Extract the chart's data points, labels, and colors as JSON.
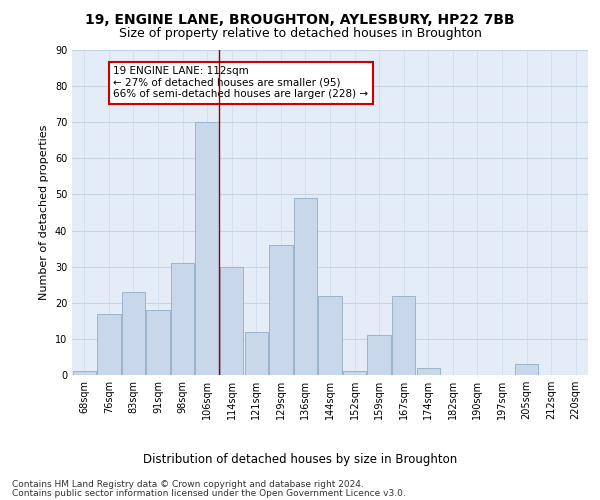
{
  "title1": "19, ENGINE LANE, BROUGHTON, AYLESBURY, HP22 7BB",
  "title2": "Size of property relative to detached houses in Broughton",
  "xlabel": "Distribution of detached houses by size in Broughton",
  "ylabel": "Number of detached properties",
  "categories": [
    "68sqm",
    "76sqm",
    "83sqm",
    "91sqm",
    "98sqm",
    "106sqm",
    "114sqm",
    "121sqm",
    "129sqm",
    "136sqm",
    "144sqm",
    "152sqm",
    "159sqm",
    "167sqm",
    "174sqm",
    "182sqm",
    "190sqm",
    "197sqm",
    "205sqm",
    "212sqm",
    "220sqm"
  ],
  "values": [
    1,
    17,
    23,
    18,
    31,
    70,
    30,
    12,
    36,
    49,
    22,
    1,
    11,
    22,
    2,
    0,
    0,
    0,
    3,
    0,
    0
  ],
  "bar_color": "#c8d8ea",
  "bar_edge_color": "#9ab4cc",
  "property_line_x": 5.5,
  "annotation_text": "19 ENGINE LANE: 112sqm\n← 27% of detached houses are smaller (95)\n66% of semi-detached houses are larger (228) →",
  "annotation_box_color": "#ffffff",
  "annotation_box_edge_color": "#cc0000",
  "line_color": "#990000",
  "ylim": [
    0,
    90
  ],
  "yticks": [
    0,
    10,
    20,
    30,
    40,
    50,
    60,
    70,
    80,
    90
  ],
  "grid_color": "#c8d4e4",
  "bg_color": "#e4ecf7",
  "footer1": "Contains HM Land Registry data © Crown copyright and database right 2024.",
  "footer2": "Contains public sector information licensed under the Open Government Licence v3.0.",
  "title_fontsize": 10,
  "subtitle_fontsize": 9,
  "xlabel_fontsize": 8.5,
  "ylabel_fontsize": 8,
  "tick_fontsize": 7,
  "footer_fontsize": 6.5
}
